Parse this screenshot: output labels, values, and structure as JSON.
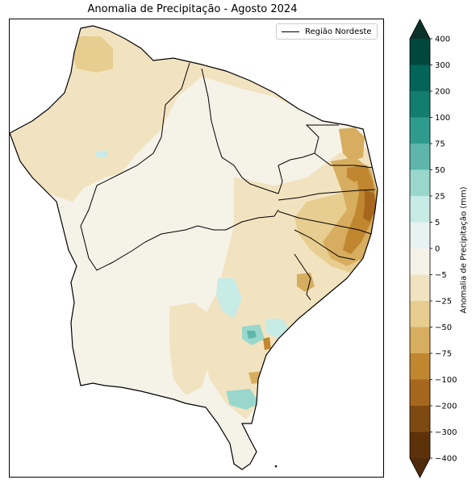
{
  "title": "Anomalia de Precipitação - Agosto 2024",
  "legend": {
    "label": "Região Nordeste"
  },
  "colorbar": {
    "label": "Anomalia de Precipitação (mm)",
    "ticks": [
      "400",
      "300",
      "200",
      "100",
      "75",
      "50",
      "25",
      "5",
      "0",
      "−5",
      "−25",
      "−50",
      "−75",
      "−100",
      "−200",
      "−300",
      "−400"
    ],
    "colors": [
      "#00473d",
      "#03655a",
      "#147d70",
      "#2f9b8f",
      "#5eb6aa",
      "#99d7cc",
      "#c7ebe5",
      "#e8f3f1",
      "#f5f2e8",
      "#f2e3c0",
      "#e7cd8f",
      "#d7ad5f",
      "#c08730",
      "#a7661d",
      "#7e4a12",
      "#5d320b"
    ],
    "top_color": "#0c3129",
    "bottom_color": "#4e2b0c"
  },
  "colors": {
    "land_dry": "#f2e3c0",
    "land_neutral": "#f5f2e8",
    "boundary": "#000000"
  }
}
